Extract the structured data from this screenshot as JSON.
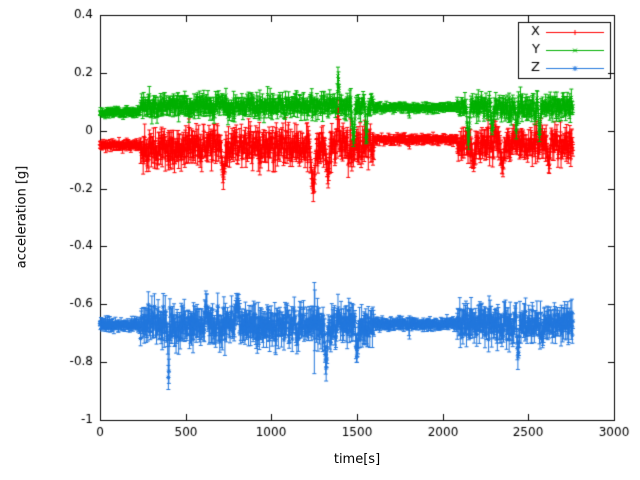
{
  "figure": {
    "background": "#ffffff",
    "axis_color": "#000000",
    "text_color": "#000000"
  },
  "chart_data": {
    "type": "line",
    "subtype": "points-with-errorbars",
    "title": "",
    "xlabel": "time[s]",
    "ylabel": "acceleration [g]",
    "xlim": [
      0,
      3000
    ],
    "ylim": [
      -1,
      0.4
    ],
    "xticks": [
      0,
      500,
      1000,
      1500,
      2000,
      2500,
      3000
    ],
    "xtick_labels": [
      "0",
      "500",
      "1000",
      "1500",
      "2000",
      "2500",
      "3000"
    ],
    "yticks": [
      -1,
      -0.8,
      -0.6,
      -0.4,
      -0.2,
      0,
      0.2,
      0.4
    ],
    "ytick_labels": [
      "-1",
      "-0.8",
      "-0.6",
      "-0.4",
      "-0.2",
      "0",
      "0.2",
      "0.4"
    ],
    "grid": false,
    "legend": {
      "position": "top-right",
      "box": true,
      "entries": [
        "X",
        "Y",
        "Z"
      ]
    },
    "sample_step": 3,
    "series": [
      {
        "name": "X",
        "color": "#ff0000",
        "marker": "plus",
        "seed": 11,
        "t_start": 0,
        "t_end": 2760,
        "segments": [
          {
            "t0": 0,
            "t1": 235,
            "mean": -0.05,
            "noise": 0.007,
            "err": 0.012
          },
          {
            "t0": 235,
            "t1": 1600,
            "mean": -0.055,
            "noise": 0.032,
            "err": 0.035
          },
          {
            "t0": 1600,
            "t1": 2085,
            "mean": -0.03,
            "noise": 0.006,
            "err": 0.012
          },
          {
            "t0": 2085,
            "t1": 2761,
            "mean": -0.045,
            "noise": 0.028,
            "err": 0.032
          }
        ],
        "events": [
          {
            "t": 720,
            "v": -0.16,
            "w": 36
          },
          {
            "t": 1245,
            "v": -0.205,
            "w": 44,
            "err": 0.04
          },
          {
            "t": 1330,
            "v": -0.165,
            "w": 30
          },
          {
            "t": 1390,
            "v": 0.105,
            "w": 14
          },
          {
            "t": 1805,
            "v": -0.04,
            "w": 10,
            "err": 0.03
          },
          {
            "t": 2180,
            "v": -0.12,
            "w": 26
          },
          {
            "t": 2350,
            "v": -0.135,
            "w": 30
          },
          {
            "t": 2620,
            "v": -0.125,
            "w": 26
          }
        ]
      },
      {
        "name": "Y",
        "color": "#00b000",
        "marker": "cross",
        "seed": 22,
        "t_start": 0,
        "t_end": 2760,
        "segments": [
          {
            "t0": 0,
            "t1": 235,
            "mean": 0.065,
            "noise": 0.006,
            "err": 0.012
          },
          {
            "t0": 235,
            "t1": 1600,
            "mean": 0.085,
            "noise": 0.018,
            "err": 0.024
          },
          {
            "t0": 1600,
            "t1": 2085,
            "mean": 0.08,
            "noise": 0.005,
            "err": 0.012
          },
          {
            "t0": 2085,
            "t1": 2761,
            "mean": 0.082,
            "noise": 0.022,
            "err": 0.024
          }
        ],
        "events": [
          {
            "t": 1390,
            "v": 0.205,
            "w": 16,
            "err": 0.035
          },
          {
            "t": 1480,
            "v": -0.04,
            "w": 26
          },
          {
            "t": 1555,
            "v": -0.045,
            "w": 20
          },
          {
            "t": 1805,
            "v": 0.062,
            "w": 10,
            "err": 0.028
          },
          {
            "t": 2150,
            "v": -0.05,
            "w": 24
          },
          {
            "t": 2290,
            "v": -0.015,
            "w": 18
          },
          {
            "t": 2430,
            "v": -0.005,
            "w": 16
          },
          {
            "t": 2565,
            "v": -0.02,
            "w": 18
          }
        ]
      },
      {
        "name": "Z",
        "color": "#2277dd",
        "marker": "star",
        "seed": 33,
        "t_start": 0,
        "t_end": 2760,
        "segments": [
          {
            "t0": 0,
            "t1": 235,
            "mean": -0.672,
            "noise": 0.008,
            "err": 0.016
          },
          {
            "t0": 235,
            "t1": 1600,
            "mean": -0.672,
            "noise": 0.032,
            "err": 0.042
          },
          {
            "t0": 1600,
            "t1": 2085,
            "mean": -0.668,
            "noise": 0.006,
            "err": 0.016
          },
          {
            "t0": 2085,
            "t1": 2761,
            "mean": -0.668,
            "noise": 0.028,
            "err": 0.038
          }
        ],
        "events": [
          {
            "t": 400,
            "v": -0.895,
            "w": 12,
            "err": 0.05
          },
          {
            "t": 620,
            "v": -0.6,
            "w": 30
          },
          {
            "t": 800,
            "v": -0.595,
            "w": 40
          },
          {
            "t": 1252,
            "v": -0.67,
            "w": 8,
            "err": 0.21
          },
          {
            "t": 1320,
            "v": -0.82,
            "w": 24
          },
          {
            "t": 1500,
            "v": -0.78,
            "w": 26
          },
          {
            "t": 1805,
            "v": -0.685,
            "w": 10,
            "err": 0.05
          },
          {
            "t": 2440,
            "v": -0.79,
            "w": 22
          }
        ]
      }
    ]
  }
}
